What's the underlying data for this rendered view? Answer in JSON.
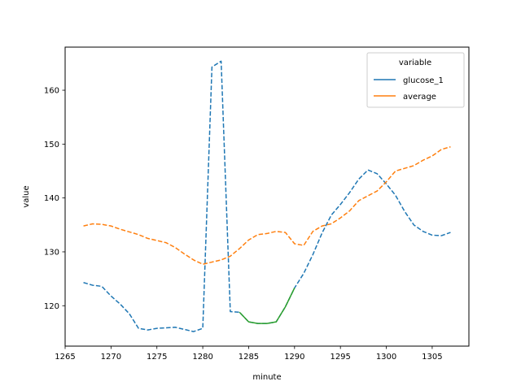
{
  "chart_data": {
    "type": "line",
    "xlabel": "minute",
    "ylabel": "value",
    "xlim": [
      1265,
      1309
    ],
    "ylim": [
      112.5,
      168
    ],
    "x_ticks": [
      1265,
      1270,
      1275,
      1280,
      1285,
      1290,
      1295,
      1300,
      1305
    ],
    "y_ticks": [
      120,
      130,
      140,
      150,
      160
    ],
    "legend": {
      "title": "variable",
      "position": "top-right",
      "entries": [
        {
          "name": "glucose_1",
          "color": "#1f77b4"
        },
        {
          "name": "average",
          "color": "#ff7f0e"
        }
      ]
    },
    "series": [
      {
        "name": "glucose_1",
        "color": "#1f77b4",
        "style": "dashed",
        "points": [
          [
            1267,
            124.3
          ],
          [
            1268,
            123.8
          ],
          [
            1269,
            123.6
          ],
          [
            1270,
            121.8
          ],
          [
            1271,
            120.3
          ],
          [
            1272,
            118.5
          ],
          [
            1273,
            115.8
          ],
          [
            1274,
            115.5
          ],
          [
            1275,
            115.8
          ],
          [
            1276,
            115.9
          ],
          [
            1277,
            116.0
          ],
          [
            1278,
            115.6
          ],
          [
            1279,
            115.2
          ],
          [
            1280,
            115.8
          ],
          [
            1281,
            164.3
          ],
          [
            1282,
            165.4
          ],
          [
            1283,
            118.9
          ],
          [
            1284,
            118.8
          ],
          [
            1285,
            117.0
          ],
          [
            1286,
            116.7
          ],
          [
            1287,
            116.7
          ],
          [
            1288,
            117.0
          ],
          [
            1289,
            119.8
          ],
          [
            1290,
            123.3
          ],
          [
            1291,
            126.0
          ],
          [
            1292,
            129.5
          ],
          [
            1293,
            133.5
          ],
          [
            1294,
            136.8
          ],
          [
            1295,
            138.8
          ],
          [
            1296,
            141.0
          ],
          [
            1297,
            143.5
          ],
          [
            1298,
            145.2
          ],
          [
            1299,
            144.5
          ],
          [
            1300,
            142.6
          ],
          [
            1301,
            140.5
          ],
          [
            1302,
            137.5
          ],
          [
            1303,
            135.0
          ],
          [
            1304,
            133.8
          ],
          [
            1305,
            133.1
          ],
          [
            1306,
            133.0
          ],
          [
            1307,
            133.6
          ]
        ]
      },
      {
        "name": "average",
        "color": "#ff7f0e",
        "style": "dashed",
        "points": [
          [
            1267,
            134.8
          ],
          [
            1268,
            135.2
          ],
          [
            1269,
            135.1
          ],
          [
            1270,
            134.8
          ],
          [
            1271,
            134.2
          ],
          [
            1272,
            133.7
          ],
          [
            1273,
            133.2
          ],
          [
            1274,
            132.5
          ],
          [
            1275,
            132.1
          ],
          [
            1276,
            131.7
          ],
          [
            1277,
            130.8
          ],
          [
            1278,
            129.6
          ],
          [
            1279,
            128.5
          ],
          [
            1280,
            127.7
          ],
          [
            1281,
            128.1
          ],
          [
            1282,
            128.5
          ],
          [
            1283,
            129.2
          ],
          [
            1284,
            130.6
          ],
          [
            1285,
            132.2
          ],
          [
            1286,
            133.2
          ],
          [
            1287,
            133.4
          ],
          [
            1288,
            133.8
          ],
          [
            1289,
            133.6
          ],
          [
            1290,
            131.5
          ],
          [
            1291,
            131.2
          ],
          [
            1292,
            133.8
          ],
          [
            1293,
            134.8
          ],
          [
            1294,
            135.2
          ],
          [
            1295,
            136.3
          ],
          [
            1296,
            137.6
          ],
          [
            1297,
            139.5
          ],
          [
            1298,
            140.4
          ],
          [
            1299,
            141.3
          ],
          [
            1300,
            143.0
          ],
          [
            1301,
            145.0
          ],
          [
            1302,
            145.5
          ],
          [
            1303,
            146.0
          ],
          [
            1304,
            147.0
          ],
          [
            1305,
            147.8
          ],
          [
            1306,
            149.0
          ],
          [
            1307,
            149.5
          ]
        ]
      },
      {
        "color": "#2ca02c",
        "style": "solid",
        "points": [
          [
            1284,
            118.8
          ],
          [
            1285,
            117.0
          ],
          [
            1286,
            116.7
          ],
          [
            1287,
            116.7
          ],
          [
            1288,
            117.0
          ],
          [
            1289,
            119.8
          ],
          [
            1290,
            123.3
          ]
        ]
      }
    ]
  }
}
